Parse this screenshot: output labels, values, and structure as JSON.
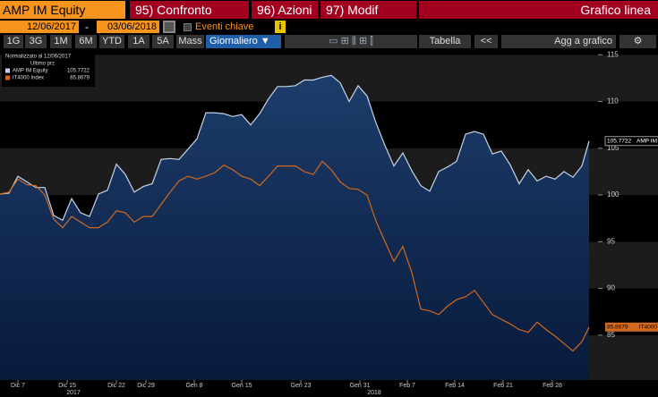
{
  "toolbar": {
    "security": "AMP IM Equity",
    "menus": [
      "95) Confronto",
      "96) Azioni",
      "97) Modif"
    ],
    "view": "Grafico linea",
    "start_date": "12/06/2017",
    "separator": "-",
    "end_date": "03/06/2018",
    "events": "Eventi chiave",
    "info": "i",
    "periods": [
      "1G",
      "3G",
      "1M",
      "6M",
      "YTD",
      "1A",
      "5A",
      "Mass"
    ],
    "frequency": "Giornaliero",
    "table": "Tabella",
    "back": "<<",
    "add": "Agg a grafico"
  },
  "chart_data": {
    "type": "line",
    "legend": {
      "title": "Normalizzato al 12/06/2017",
      "subtitle": "Ultimo prz"
    },
    "x": [
      0,
      1,
      2,
      3,
      4,
      5,
      6,
      7,
      8,
      9,
      10,
      11,
      12,
      13,
      14,
      15,
      16,
      17,
      18,
      19,
      20,
      21,
      22,
      23,
      24,
      25,
      26,
      27,
      28,
      29,
      30,
      31,
      32,
      33,
      34,
      35,
      36,
      37,
      38,
      39,
      40,
      41,
      42,
      43,
      44,
      45,
      46,
      47,
      48,
      49,
      50,
      51,
      52,
      53,
      54,
      55,
      56,
      57,
      58,
      59,
      60,
      61,
      62,
      63,
      64,
      65,
      65.8
    ],
    "xlim": [
      0,
      66.8
    ],
    "xticks": [
      {
        "value": 2.0,
        "label": "Dic 7"
      },
      {
        "value": 7.5,
        "label": "Dic 15"
      },
      {
        "value": 13.0,
        "label": "Dic 22"
      },
      {
        "value": 16.3,
        "label": "Dic 29"
      },
      {
        "value": 21.7,
        "label": "Gen 8"
      },
      {
        "value": 27.0,
        "label": "Gen 15"
      },
      {
        "value": 33.6,
        "label": "Gen 23"
      },
      {
        "value": 40.2,
        "label": "Gen 31"
      },
      {
        "value": 45.5,
        "label": "Feb 7"
      },
      {
        "value": 50.8,
        "label": "Feb 14"
      },
      {
        "value": 56.2,
        "label": "Feb 21"
      },
      {
        "value": 61.7,
        "label": "Feb 28"
      }
    ],
    "year_labels": [
      {
        "value": 8.2,
        "label": "2017"
      },
      {
        "value": 41.8,
        "label": "2018"
      }
    ],
    "ylim": [
      80.2,
      115.6
    ],
    "yticks": [
      85,
      90,
      95,
      100,
      105,
      110,
      115
    ],
    "series": [
      {
        "name": "AMP IM Equity",
        "tag": "AMP IM",
        "color": "#c8d4e6",
        "fill": true,
        "values": [
          100.1,
          100.2,
          102.0,
          101.4,
          100.8,
          100.8,
          97.8,
          97.3,
          99.6,
          98.1,
          97.7,
          100.1,
          100.5,
          103.3,
          102.2,
          100.3,
          100.9,
          101.2,
          103.8,
          103.9,
          103.8,
          104.9,
          106.0,
          108.8,
          108.8,
          108.7,
          108.4,
          108.6,
          107.5,
          108.7,
          110.3,
          111.6,
          111.6,
          111.7,
          112.3,
          112.3,
          112.6,
          112.8,
          112.0,
          110.0,
          111.7,
          110.6,
          107.7,
          105.3,
          103.1,
          104.5,
          102.6,
          101.0,
          100.4,
          102.5,
          103.0,
          103.6,
          106.5,
          106.8,
          106.5,
          104.4,
          104.7,
          103.2,
          101.2,
          102.7,
          101.5,
          102.0,
          101.7,
          102.5,
          101.9,
          103.1,
          105.7722
        ]
      },
      {
        "name": "IT4000 Index",
        "tag": "IT4000",
        "color": "#d2691e",
        "fill": false,
        "values": [
          100.1,
          100.3,
          101.7,
          101.1,
          101.0,
          100.0,
          97.4,
          96.5,
          97.7,
          97.1,
          96.5,
          96.5,
          97.1,
          98.3,
          98.1,
          97.1,
          97.7,
          97.7,
          99.0,
          100.3,
          101.5,
          102.0,
          101.7,
          102.0,
          102.4,
          103.2,
          102.7,
          102.0,
          101.7,
          101.0,
          102.0,
          103.1,
          103.1,
          103.1,
          102.5,
          102.2,
          103.6,
          102.7,
          101.4,
          100.7,
          100.6,
          100.0,
          97.2,
          95.0,
          92.9,
          94.5,
          91.7,
          87.8,
          87.6,
          87.2,
          88.1,
          88.8,
          89.1,
          89.8,
          88.5,
          87.2,
          86.7,
          86.2,
          85.6,
          85.3,
          86.4,
          85.6,
          84.9,
          84.1,
          83.3,
          84.3,
          85.8679
        ]
      }
    ]
  }
}
